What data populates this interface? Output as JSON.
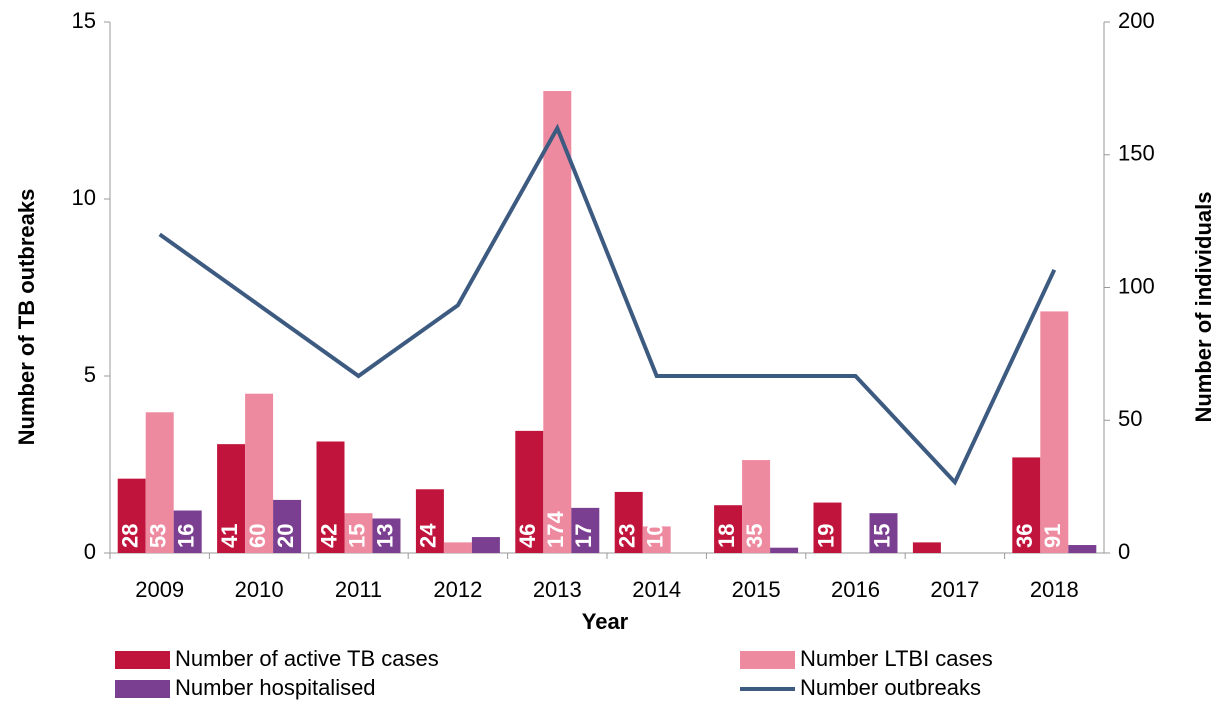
{
  "chart_data": {
    "type": "bar-line",
    "x_label": "Year",
    "y_label": "Number of TB outbreaks",
    "y2_label": "Number of individuals",
    "categories": [
      "2009",
      "2010",
      "2011",
      "2012",
      "2013",
      "2014",
      "2015",
      "2016",
      "2017",
      "2018"
    ],
    "series": [
      {
        "name": "Number of active TB cases",
        "type": "bar",
        "axis": "y2",
        "color": "#c0143c",
        "values": [
          28,
          41,
          42,
          24,
          46,
          23,
          18,
          19,
          4,
          36
        ]
      },
      {
        "name": "Number LTBI cases",
        "type": "bar",
        "axis": "y2",
        "color": "#ee8aa0",
        "values": [
          53,
          60,
          15,
          4,
          174,
          10,
          35,
          0,
          0,
          91
        ]
      },
      {
        "name": "Number hospitalised",
        "type": "bar",
        "axis": "y2",
        "color": "#7b3f91",
        "values": [
          16,
          20,
          13,
          6,
          17,
          0,
          2,
          15,
          0,
          3
        ]
      },
      {
        "name": "Number outbreaks",
        "type": "line",
        "axis": "y",
        "color": "#3d5a80",
        "values": [
          9,
          7,
          5,
          7,
          12,
          5,
          5,
          5,
          2,
          8
        ]
      }
    ],
    "ylim": [
      0,
      15
    ],
    "yticks": [
      0,
      5,
      10,
      15
    ],
    "y2lim": [
      0,
      200
    ],
    "y2ticks": [
      0,
      50,
      100,
      150,
      200
    ],
    "legend": "bottom"
  }
}
